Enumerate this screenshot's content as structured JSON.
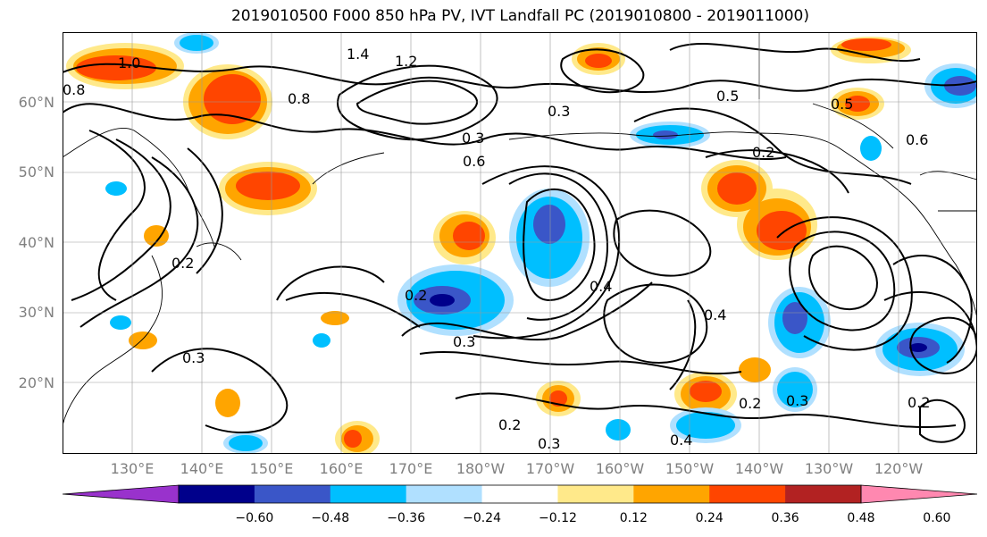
{
  "title": "2019010500 F000 850 hPa PV, IVT Landfall PC (2019010800 - 2019011000)",
  "lat_labels": [
    "60°N",
    "50°N",
    "40°N",
    "30°N",
    "20°N"
  ],
  "lon_labels": [
    "130°E",
    "140°E",
    "150°E",
    "160°E",
    "170°E",
    "180°W",
    "170°W",
    "160°W",
    "150°W",
    "140°W",
    "130°W",
    "120°W"
  ],
  "contour_labels": [
    "1.0",
    "1.4",
    "1.2",
    "0.8",
    "0.8",
    "0.5",
    "0.6",
    "0.2",
    "0.3",
    "0.3",
    "0.4",
    "0.2",
    "0.3",
    "0.2",
    "0.3",
    "0.2",
    "0.4",
    "0.2",
    "0.3",
    "0.6",
    "0.2",
    "0.3",
    "0.4",
    "0.5"
  ],
  "colorbar": {
    "ticks": [
      "−0.60",
      "−0.48",
      "−0.36",
      "−0.24",
      "−0.12",
      "0.12",
      "0.24",
      "0.36",
      "0.48",
      "0.60"
    ],
    "colors": [
      "#9932cc",
      "#00008b",
      "#3a56c8",
      "#00bfff",
      "#b0e0ff",
      "#ffffff",
      "#ffe98a",
      "#ffa500",
      "#ff4500",
      "#b22222",
      "#ff88b0"
    ]
  },
  "colors": {
    "positive_orange": "#ffa500",
    "positive_red": "#ff4500",
    "negative_blue": "#00bfff",
    "negative_navy": "#3a56c8",
    "contour": "#000000"
  }
}
